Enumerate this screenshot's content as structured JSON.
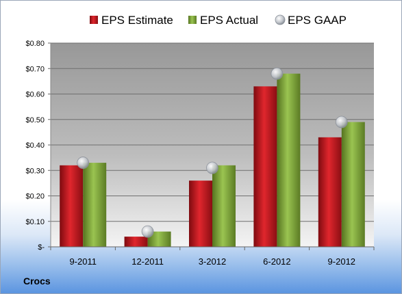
{
  "company": "Crocs",
  "chart_data": {
    "type": "bar",
    "categories": [
      "9-2011",
      "12-2011",
      "3-2012",
      "6-2012",
      "9-2012"
    ],
    "series": [
      {
        "name": "EPS Estimate",
        "kind": "bar",
        "color": "#c0151c",
        "values": [
          0.32,
          0.04,
          0.26,
          0.63,
          0.43
        ]
      },
      {
        "name": "EPS Actual",
        "kind": "bar",
        "color": "#7fa53a",
        "values": [
          0.33,
          0.06,
          0.32,
          0.68,
          0.49
        ]
      },
      {
        "name": "EPS GAAP",
        "kind": "marker",
        "color": "#b8bcc4",
        "values": [
          0.33,
          0.06,
          0.31,
          0.68,
          0.49
        ]
      }
    ],
    "ylim": [
      0,
      0.8
    ],
    "yticks": [
      0,
      0.1,
      0.2,
      0.3,
      0.4,
      0.5,
      0.6,
      0.7,
      0.8
    ],
    "ytick_labels": [
      "$-",
      "$0.10",
      "$0.20",
      "$0.30",
      "$0.40",
      "$0.50",
      "$0.60",
      "$0.70",
      "$0.80"
    ],
    "grid": true,
    "legend": "top-center",
    "title": "",
    "xlabel": "",
    "ylabel": ""
  }
}
